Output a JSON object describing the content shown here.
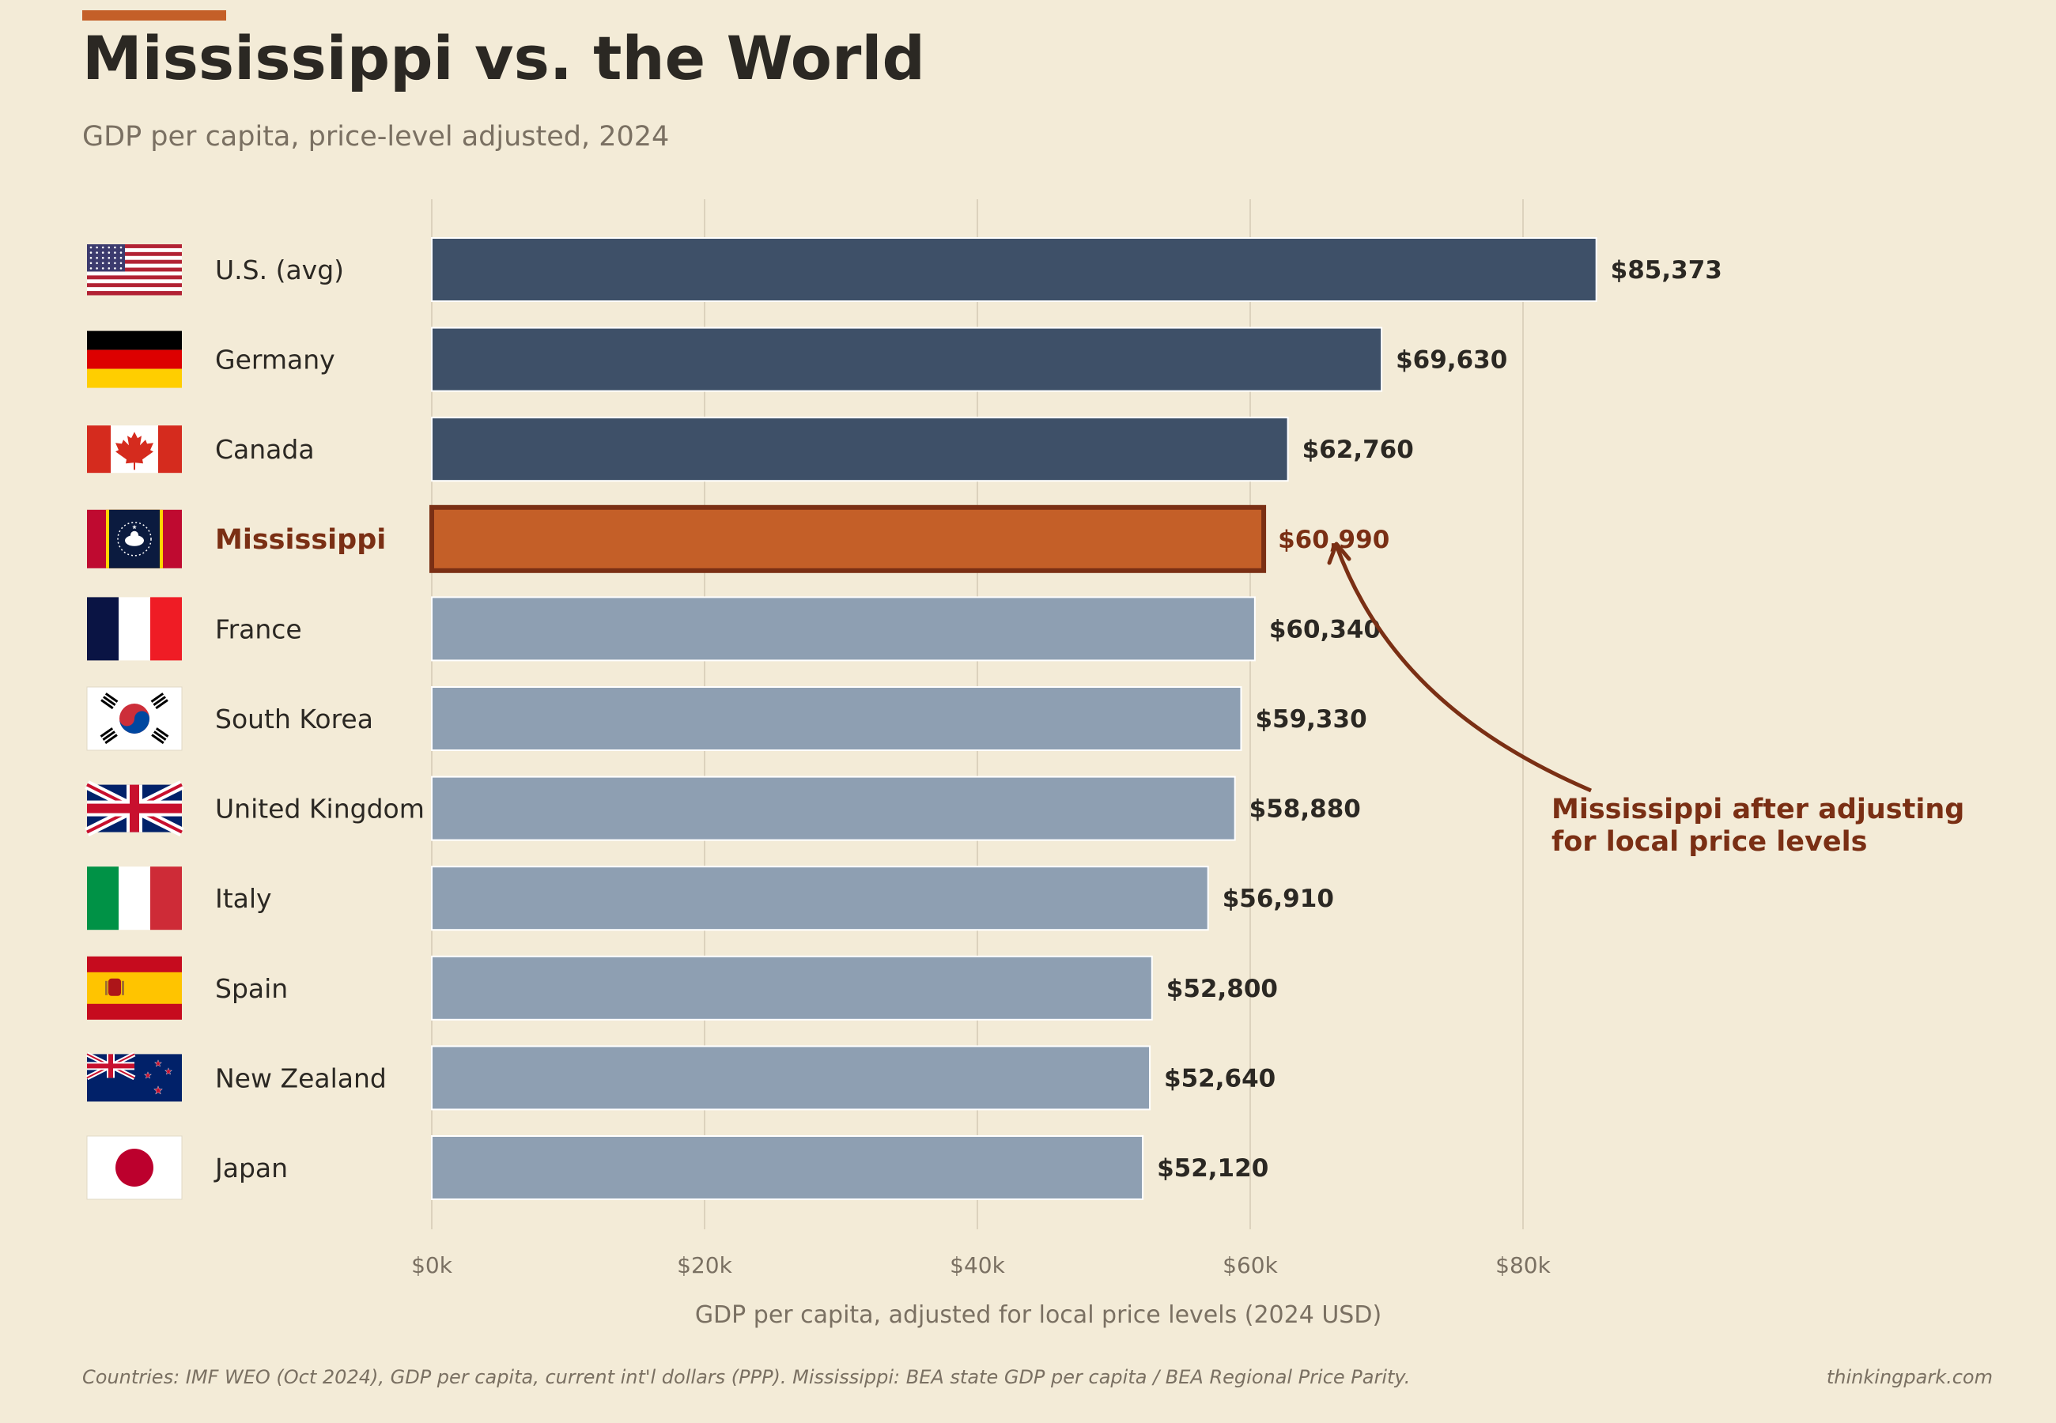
{
  "chart_data": {
    "type": "bar",
    "orientation": "horizontal",
    "title": "Mississippi vs. the World",
    "subtitle": "GDP per capita, price-level adjusted, 2024",
    "xlabel": "GDP per capita, adjusted for local price levels (2024 USD)",
    "xlim": [
      0,
      100000
    ],
    "xticks": [
      {
        "value": 0,
        "label": "$0k"
      },
      {
        "value": 20000,
        "label": "$20k"
      },
      {
        "value": 40000,
        "label": "$40k"
      },
      {
        "value": 60000,
        "label": "$60k"
      },
      {
        "value": 80000,
        "label": "$80k"
      }
    ],
    "grid": "vertical",
    "categories": [
      "U.S. (avg)",
      "Germany",
      "Canada",
      "Mississippi",
      "France",
      "South Korea",
      "United Kingdom",
      "Italy",
      "Spain",
      "New Zealand",
      "Japan"
    ],
    "values": [
      85373,
      69630,
      62760,
      60990,
      60340,
      59330,
      58880,
      56910,
      52800,
      52640,
      52120
    ],
    "value_labels": [
      "$85,373",
      "$69,630",
      "$62,760",
      "$60,990",
      "$60,340",
      "$59,330",
      "$58,880",
      "$56,910",
      "$52,800",
      "$52,640",
      "$52,120"
    ],
    "flags": [
      "us-flag",
      "germany-flag",
      "canada-flag",
      "mississippi-flag",
      "france-flag",
      "south-korea-flag",
      "uk-flag",
      "italy-flag",
      "spain-flag",
      "new-zealand-flag",
      "japan-flag"
    ],
    "highlight": "Mississippi",
    "colors": {
      "above": "#3e5068",
      "highlight": "#c45f28",
      "highlight_edge": "#7a2f14",
      "below": "#8e9fb2",
      "accent_bar": "#c45f28",
      "background": "#f3ebd7"
    },
    "annotation": {
      "lines": [
        "Mississippi after adjusting",
        "for local price levels"
      ],
      "target": "Mississippi"
    }
  },
  "footer": {
    "source": "Countries: IMF WEO (Oct 2024), GDP per capita, current int'l dollars (PPP).  Mississippi: BEA state GDP per capita / BEA Regional Price Parity.",
    "credit": "thinkingpark.com"
  }
}
